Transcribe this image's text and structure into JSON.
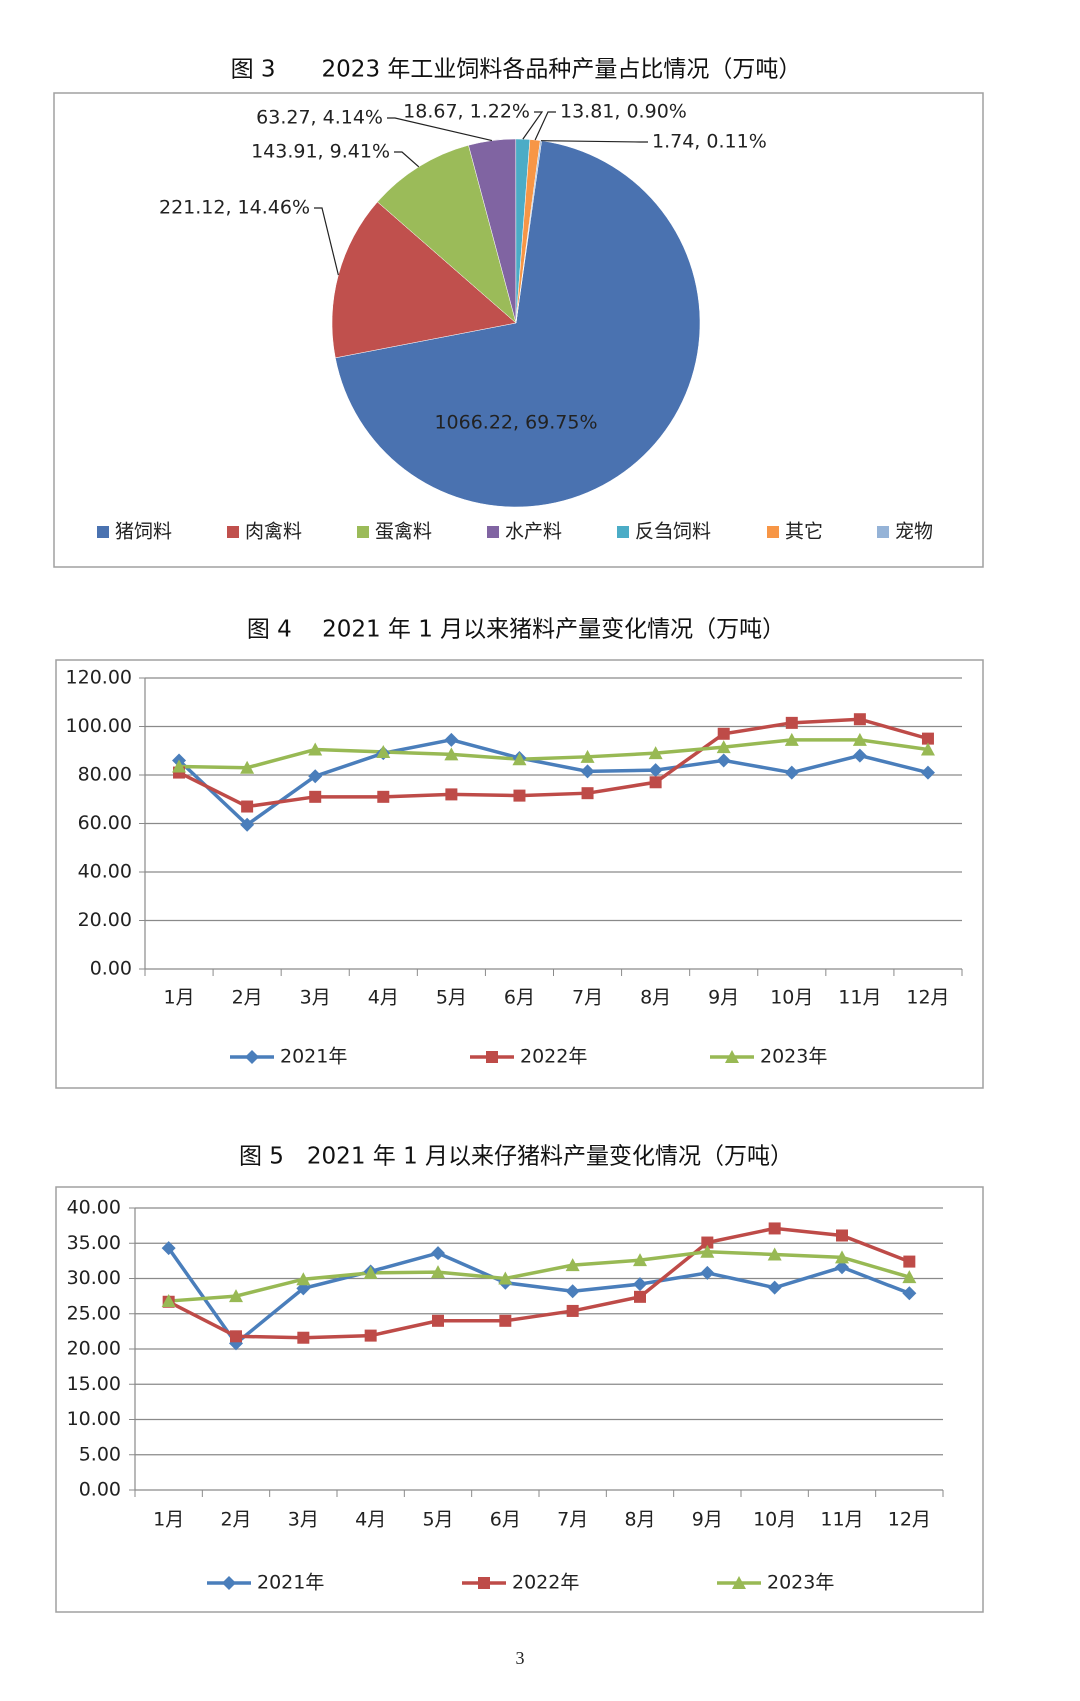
{
  "chart_data": [
    {
      "type": "pie",
      "title": "图 3　　2023 年工业饲料各品种产量占比情况（万吨）",
      "categories": [
        "猪饲料",
        "肉禽料",
        "蛋禽料",
        "水产料",
        "反刍饲料",
        "其它",
        "宠物"
      ],
      "values": [
        1066.22,
        221.12,
        143.91,
        63.27,
        18.67,
        13.81,
        1.74
      ],
      "value_labels": [
        "1066.22, 69.75%",
        "221.12, 14.46%",
        "143.91, 9.41%",
        "63.27, 4.14%",
        "18.67, 1.22%",
        "13.81, 0.90%",
        "1.74, 0.11%"
      ],
      "colors": [
        "#4a72b0",
        "#c0504d",
        "#9bbb59",
        "#8064a2",
        "#4bacc6",
        "#f79646",
        "#95b3d7"
      ],
      "legend": "bottom"
    },
    {
      "type": "line",
      "title": "图 4　 2021 年 1 月以来猪料产量变化情况（万吨）",
      "categories": [
        "1月",
        "2月",
        "3月",
        "4月",
        "5月",
        "6月",
        "7月",
        "8月",
        "9月",
        "10月",
        "11月",
        "12月"
      ],
      "series": [
        {
          "name": "2021年",
          "color": "#4a7ebb",
          "values": [
            86,
            59.5,
            79.5,
            89,
            94.5,
            87,
            81.5,
            82,
            86,
            81,
            88,
            81
          ]
        },
        {
          "name": "2022年",
          "color": "#be4b48",
          "values": [
            81,
            67,
            71,
            71,
            72,
            71.5,
            72.5,
            77,
            97,
            101.5,
            103,
            95
          ]
        },
        {
          "name": "2023年",
          "color": "#98b954",
          "values": [
            83.5,
            83,
            90.5,
            89.5,
            88.5,
            86.5,
            87.5,
            89,
            91.5,
            94.5,
            94.5,
            90.5
          ]
        }
      ],
      "ylim": [
        0,
        120
      ],
      "yticks": [
        {
          "value": 0,
          "label": "0.00"
        },
        {
          "value": 20,
          "label": "20.00"
        },
        {
          "value": 40,
          "label": "40.00"
        },
        {
          "value": 60,
          "label": "60.00"
        },
        {
          "value": 80,
          "label": "80.00"
        },
        {
          "value": 100,
          "label": "100.00"
        },
        {
          "value": 120,
          "label": "120.00"
        }
      ],
      "grid": true,
      "legend": "bottom"
    },
    {
      "type": "line",
      "title": "图 5　2021 年 1 月以来仔猪料产量变化情况（万吨）",
      "categories": [
        "1月",
        "2月",
        "3月",
        "4月",
        "5月",
        "6月",
        "7月",
        "8月",
        "9月",
        "10月",
        "11月",
        "12月"
      ],
      "series": [
        {
          "name": "2021年",
          "color": "#4a7ebb",
          "values": [
            34.3,
            20.8,
            28.6,
            31.0,
            33.6,
            29.4,
            28.2,
            29.2,
            30.8,
            28.7,
            31.6,
            27.9
          ]
        },
        {
          "name": "2022年",
          "color": "#be4b48",
          "values": [
            26.7,
            21.8,
            21.6,
            21.9,
            24.0,
            24.0,
            25.4,
            27.4,
            35.1,
            37.1,
            36.1,
            32.4
          ]
        },
        {
          "name": "2023年",
          "color": "#98b954",
          "values": [
            26.8,
            27.5,
            29.9,
            30.8,
            30.9,
            30.0,
            31.9,
            32.6,
            33.8,
            33.4,
            33.0,
            30.2
          ]
        }
      ],
      "ylim": [
        0,
        40
      ],
      "yticks": [
        {
          "value": 0,
          "label": "0.00"
        },
        {
          "value": 5,
          "label": "5.00"
        },
        {
          "value": 10,
          "label": "10.00"
        },
        {
          "value": 15,
          "label": "15.00"
        },
        {
          "value": 20,
          "label": "20.00"
        },
        {
          "value": 25,
          "label": "25.00"
        },
        {
          "value": 30,
          "label": "30.00"
        },
        {
          "value": 35,
          "label": "35.00"
        },
        {
          "value": 40,
          "label": "40.00"
        }
      ],
      "grid": true,
      "legend": "bottom"
    }
  ],
  "page_number": "3"
}
